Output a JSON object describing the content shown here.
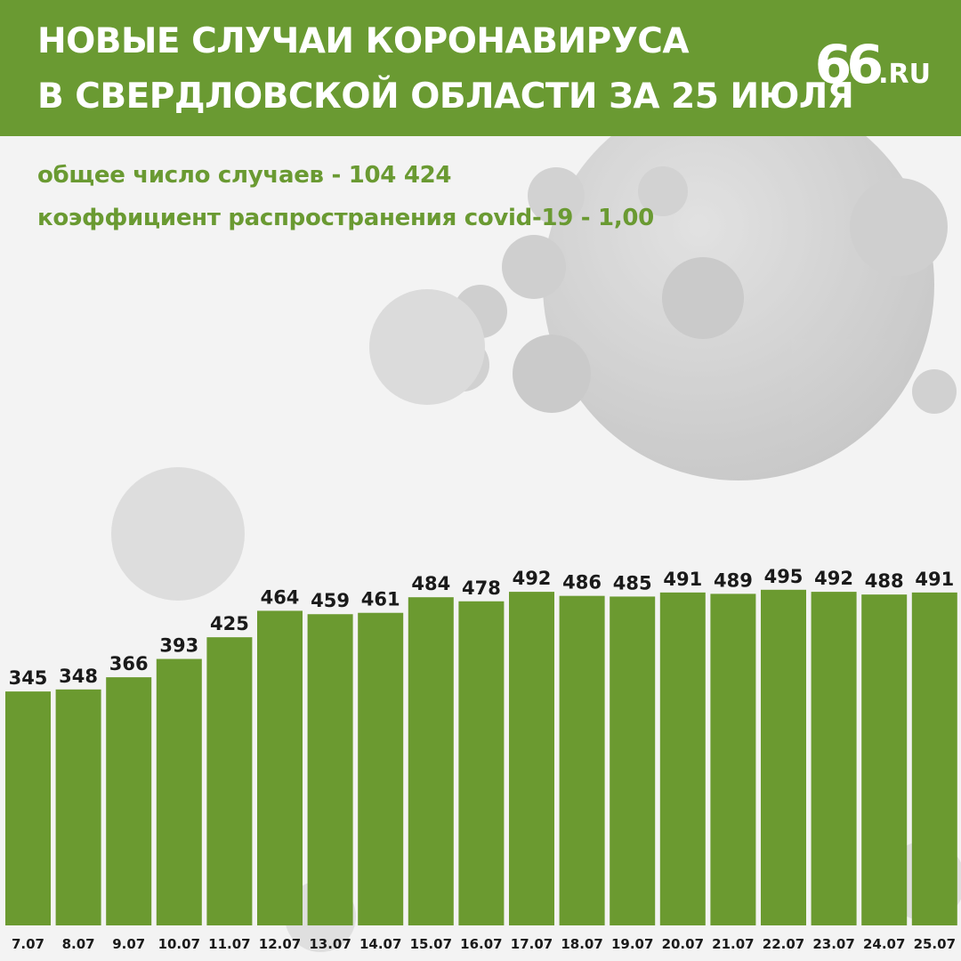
{
  "header": {
    "title_line1": "НОВЫЕ СЛУЧАИ КОРОНАВИРУСА",
    "title_line2": "В СВЕРДЛОВСКОЙ ОБЛАСТИ ЗА 25 ИЮЛЯ",
    "logo_number": "66",
    "logo_suffix": ".RU"
  },
  "stats": {
    "total_line": "общее число случаев -  104 424",
    "rate_line": "коэффициент распространения covid-19 - 1,00"
  },
  "colors": {
    "brand_green": "#6a9a32",
    "bar_green": "#6b9a30",
    "background": "#f3f3f3",
    "virus_gray": "#c8c8c8"
  },
  "decorations": {
    "background_image": "coronavirus-illustration"
  },
  "chart_data": {
    "type": "bar",
    "categories": [
      "7.07",
      "8.07",
      "9.07",
      "10.07",
      "11.07",
      "12.07",
      "13.07",
      "14.07",
      "15.07",
      "16.07",
      "17.07",
      "18.07",
      "19.07",
      "20.07",
      "21.07",
      "22.07",
      "23.07",
      "24.07",
      "25.07"
    ],
    "values": [
      345,
      348,
      366,
      393,
      425,
      464,
      459,
      461,
      484,
      478,
      492,
      486,
      485,
      491,
      489,
      495,
      492,
      488,
      491
    ],
    "title": "",
    "xlabel": "",
    "ylabel": "",
    "ylim": [
      0,
      500
    ],
    "grid": false,
    "legend": "none"
  }
}
